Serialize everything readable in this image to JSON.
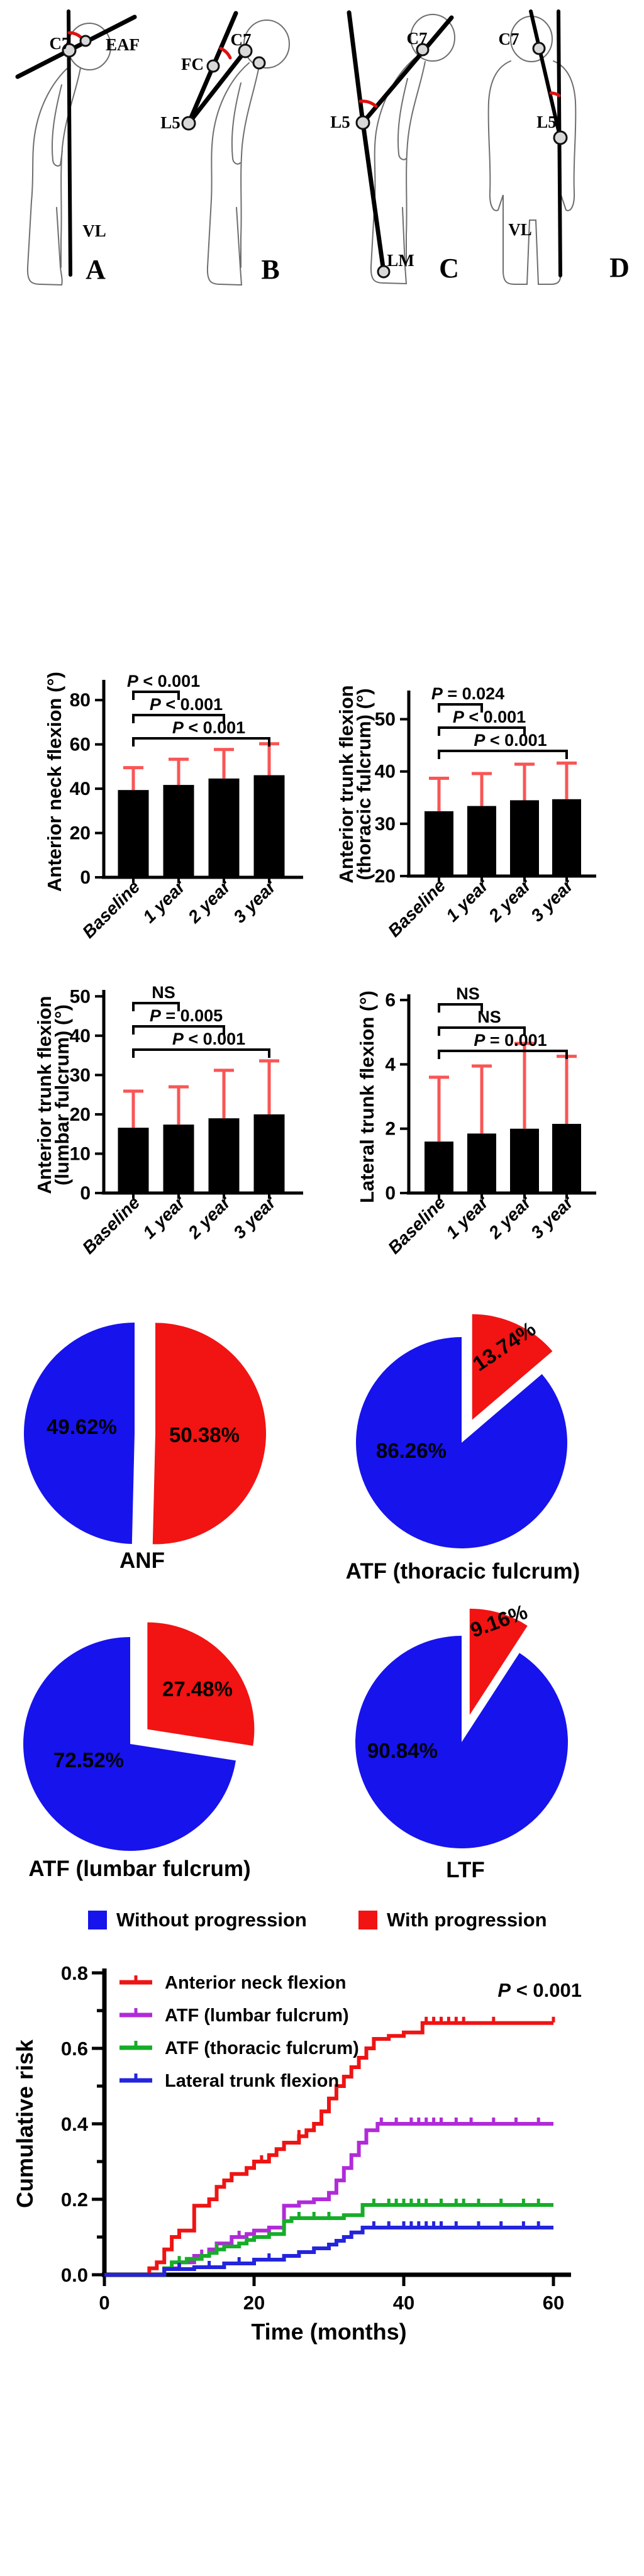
{
  "diagrams": {
    "panels": [
      {
        "letter": "A",
        "labels": {
          "c7": "C7",
          "eaf": "EAF",
          "vl": "VL"
        }
      },
      {
        "letter": "B",
        "labels": {
          "fc": "FC",
          "c7": "C7",
          "l5": "L5"
        }
      },
      {
        "letter": "C",
        "labels": {
          "c7": "C7",
          "l5": "L5",
          "lm": "LM"
        }
      },
      {
        "letter": "D",
        "labels": {
          "c7": "C7",
          "l5": "L5",
          "vl": "VL"
        }
      }
    ]
  },
  "pie_legend": {
    "without": "Without progression",
    "with": "With progression"
  },
  "colors": {
    "bar_fill": "#000000",
    "error_bar": "#f95555",
    "pie_blue": "#1713ec",
    "pie_red": "#f21313",
    "km_red": "#ee1414",
    "km_purple": "#b02bd8",
    "km_green": "#16ad28",
    "km_blue": "#2424dc"
  },
  "chart_data": [
    {
      "type": "bar",
      "id": "anterior-neck-flexion",
      "ylabel_lines": [
        "Anterior neck flexion (°)"
      ],
      "categories": [
        "Baseline",
        "1 year",
        "2 year",
        "3 year"
      ],
      "values": [
        39.4,
        41.7,
        44.6,
        46.1
      ],
      "sd": [
        10.1,
        11.6,
        13.1,
        14.2
      ],
      "ylim": [
        0,
        88
      ],
      "yticks": [
        0,
        20,
        40,
        60,
        80
      ],
      "comparisons": [
        {
          "from": 0,
          "to": 1,
          "label": "P < 0.001"
        },
        {
          "from": 0,
          "to": 2,
          "label": "P < 0.001"
        },
        {
          "from": 0,
          "to": 3,
          "label": "P < 0.001"
        }
      ]
    },
    {
      "type": "bar",
      "id": "anterior-trunk-flexion-thoracic",
      "ylabel_lines": [
        "Anterior trunk flexion",
        "(thoracic fulcrum) (°)"
      ],
      "categories": [
        "Baseline",
        "1 year",
        "2 year",
        "3 year"
      ],
      "values": [
        32.4,
        33.4,
        34.5,
        34.7
      ],
      "sd": [
        6.3,
        6.2,
        6.9,
        6.9
      ],
      "ylim": [
        20,
        55
      ],
      "yticks": [
        20,
        30,
        40,
        50
      ],
      "comparisons": [
        {
          "from": 0,
          "to": 1,
          "label": "P = 0.024"
        },
        {
          "from": 0,
          "to": 2,
          "label": "P < 0.001"
        },
        {
          "from": 0,
          "to": 3,
          "label": "P < 0.001"
        }
      ]
    },
    {
      "type": "bar",
      "id": "anterior-trunk-flexion-lumbar",
      "ylabel_lines": [
        "Anterior trunk flexion",
        "(lumbar fulcrum) (°)"
      ],
      "categories": [
        "Baseline",
        "1 year",
        "2 year",
        "3 year"
      ],
      "values": [
        16.6,
        17.4,
        19.0,
        20.0
      ],
      "sd": [
        9.3,
        9.6,
        12.2,
        13.6
      ],
      "ylim": [
        0,
        51
      ],
      "yticks": [
        0,
        10,
        20,
        30,
        40,
        50
      ],
      "comparisons": [
        {
          "from": 0,
          "to": 1,
          "label": "NS"
        },
        {
          "from": 0,
          "to": 2,
          "label": "P = 0.005"
        },
        {
          "from": 0,
          "to": 3,
          "label": "P < 0.001"
        }
      ]
    },
    {
      "type": "bar",
      "id": "lateral-trunk-flexion",
      "ylabel_lines": [
        "Lateral trunk flexion (°)"
      ],
      "categories": [
        "Baseline",
        "1 year",
        "2 year",
        "3 year"
      ],
      "values": [
        1.6,
        1.85,
        2.0,
        2.15
      ],
      "sd": [
        2.0,
        2.1,
        2.65,
        2.1
      ],
      "ylim": [
        0,
        6.1
      ],
      "yticks": [
        0,
        2,
        4,
        6
      ],
      "comparisons": [
        {
          "from": 0,
          "to": 1,
          "label": "NS"
        },
        {
          "from": 0,
          "to": 2,
          "label": "NS"
        },
        {
          "from": 0,
          "to": 3,
          "label": "P = 0.001"
        }
      ]
    },
    {
      "type": "pie",
      "title": "ANF",
      "slices": [
        {
          "name": "Without progression",
          "value": 49.62,
          "label": "49.62%",
          "color": "blue"
        },
        {
          "name": "With progression",
          "value": 50.38,
          "label": "50.38%",
          "color": "red",
          "exploded": true
        }
      ]
    },
    {
      "type": "pie",
      "title": "ATF (thoracic fulcrum)",
      "slices": [
        {
          "name": "Without progression",
          "value": 86.26,
          "label": "86.26%",
          "color": "blue"
        },
        {
          "name": "With progression",
          "value": 13.74,
          "label": "13.74%",
          "color": "red",
          "exploded": true
        }
      ]
    },
    {
      "type": "pie",
      "title": "ATF (lumbar fulcrum)",
      "slices": [
        {
          "name": "Without progression",
          "value": 72.52,
          "label": "72.52%",
          "color": "blue"
        },
        {
          "name": "With progression",
          "value": 27.48,
          "label": "27.48%",
          "color": "red",
          "exploded": true
        }
      ]
    },
    {
      "type": "pie",
      "title": "LTF",
      "slices": [
        {
          "name": "Without progression",
          "value": 90.84,
          "label": "90.84%",
          "color": "blue"
        },
        {
          "name": "With progression",
          "value": 9.16,
          "label": "9.16%",
          "color": "red",
          "exploded": true
        }
      ]
    },
    {
      "type": "line",
      "subtype": "cumulative-incidence-steps",
      "xlabel": "Time (months)",
      "ylabel": "Cumulative risk",
      "xlim": [
        0,
        60
      ],
      "ylim": [
        0,
        0.8
      ],
      "xticks": [
        0,
        20,
        40,
        60
      ],
      "yticks": [
        0,
        0.2,
        0.4,
        0.6,
        0.8
      ],
      "annotation": "P < 0.001",
      "legend_position": "top-left-inside",
      "series": [
        {
          "name": "Anterior neck flexion",
          "color": "km_red",
          "steps": [
            [
              0,
              0
            ],
            [
              6,
              0.017
            ],
            [
              7,
              0.033
            ],
            [
              8,
              0.067
            ],
            [
              9,
              0.1
            ],
            [
              10,
              0.117
            ],
            [
              12,
              0.183
            ],
            [
              14,
              0.2
            ],
            [
              15,
              0.233
            ],
            [
              16,
              0.25
            ],
            [
              17,
              0.267
            ],
            [
              19,
              0.283
            ],
            [
              20,
              0.3
            ],
            [
              22,
              0.317
            ],
            [
              23,
              0.333
            ],
            [
              24,
              0.35
            ],
            [
              26,
              0.367
            ],
            [
              27,
              0.383
            ],
            [
              28,
              0.4
            ],
            [
              29,
              0.433
            ],
            [
              30,
              0.467
            ],
            [
              31,
              0.5
            ],
            [
              32,
              0.525
            ],
            [
              33,
              0.55
            ],
            [
              34,
              0.575
            ],
            [
              35,
              0.6
            ],
            [
              36,
              0.625
            ],
            [
              38,
              0.633
            ],
            [
              40,
              0.642
            ],
            [
              42.5,
              0.667
            ],
            [
              60,
              0.667
            ]
          ],
          "censor_ticks": [
            21,
            26,
            43,
            44,
            45,
            46,
            47,
            48,
            52,
            60
          ]
        },
        {
          "name": "ATF (lumbar fulcrum)",
          "color": "km_purple",
          "steps": [
            [
              0,
              0
            ],
            [
              8,
              0.017
            ],
            [
              10,
              0.033
            ],
            [
              12,
              0.05
            ],
            [
              14,
              0.067
            ],
            [
              15,
              0.083
            ],
            [
              17,
              0.1
            ],
            [
              19,
              0.108
            ],
            [
              20,
              0.117
            ],
            [
              22,
              0.125
            ],
            [
              24,
              0.183
            ],
            [
              26,
              0.192
            ],
            [
              28,
              0.2
            ],
            [
              30,
              0.217
            ],
            [
              31,
              0.25
            ],
            [
              32,
              0.283
            ],
            [
              33,
              0.317
            ],
            [
              34,
              0.35
            ],
            [
              35,
              0.383
            ],
            [
              36.5,
              0.4
            ],
            [
              60,
              0.4
            ]
          ],
          "censor_ticks": [
            9,
            13,
            18,
            37,
            39,
            41,
            42,
            43,
            44,
            45,
            47,
            49,
            52,
            55,
            58
          ]
        },
        {
          "name": "ATF (thoracic fulcrum)",
          "color": "km_green",
          "steps": [
            [
              0,
              0
            ],
            [
              8,
              0.017
            ],
            [
              9,
              0.033
            ],
            [
              11,
              0.042
            ],
            [
              13,
              0.05
            ],
            [
              14,
              0.058
            ],
            [
              15,
              0.067
            ],
            [
              16,
              0.075
            ],
            [
              18,
              0.083
            ],
            [
              19,
              0.092
            ],
            [
              20,
              0.1
            ],
            [
              22,
              0.108
            ],
            [
              24,
              0.142
            ],
            [
              25,
              0.15
            ],
            [
              32,
              0.158
            ],
            [
              34.5,
              0.185
            ],
            [
              60,
              0.185
            ]
          ],
          "censor_ticks": [
            10,
            15,
            26,
            28,
            30,
            36,
            38,
            39,
            40,
            41,
            42,
            43,
            45,
            47,
            48,
            50,
            53,
            56,
            58
          ]
        },
        {
          "name": "Lateral trunk flexion",
          "color": "km_blue",
          "steps": [
            [
              0,
              0
            ],
            [
              8,
              0.015
            ],
            [
              12,
              0.02
            ],
            [
              16,
              0.03
            ],
            [
              20,
              0.04
            ],
            [
              24,
              0.05
            ],
            [
              26,
              0.06
            ],
            [
              28,
              0.07
            ],
            [
              30,
              0.08
            ],
            [
              31,
              0.09
            ],
            [
              32,
              0.1
            ],
            [
              33,
              0.112
            ],
            [
              34.5,
              0.125
            ],
            [
              60,
              0.125
            ]
          ],
          "censor_ticks": [
            10,
            14,
            18,
            22,
            36,
            38,
            40,
            41,
            42,
            43,
            44,
            45,
            47,
            50,
            53,
            56,
            58
          ]
        }
      ]
    }
  ]
}
